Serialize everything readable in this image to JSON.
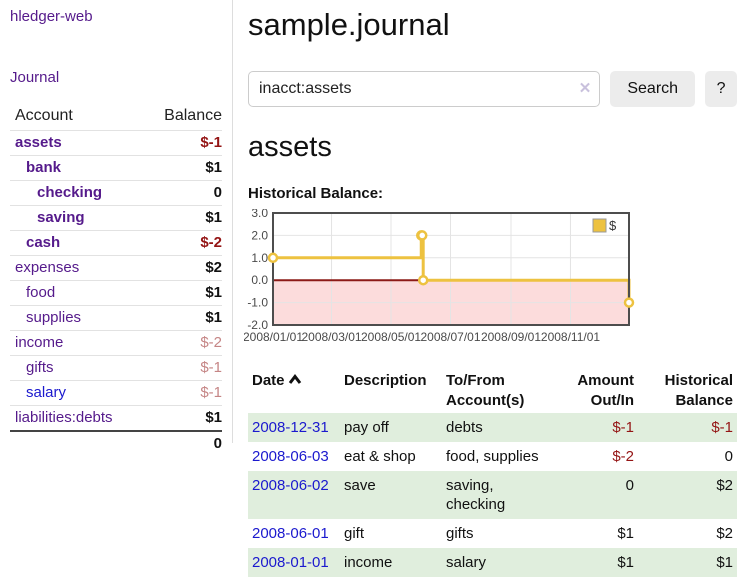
{
  "app": {
    "name": "hledger-web"
  },
  "sidebar": {
    "nav_journal": "Journal",
    "accounts_table": {
      "headers": {
        "account": "Account",
        "balance": "Balance"
      },
      "rows": [
        {
          "name": "assets",
          "balance": "$-1",
          "level": 1,
          "bold": true,
          "tone": "neg-strong"
        },
        {
          "name": "bank",
          "balance": "$1",
          "level": 2,
          "bold": true,
          "tone": "pos"
        },
        {
          "name": "checking",
          "balance": "0",
          "level": 3,
          "bold": true,
          "tone": "pos"
        },
        {
          "name": "saving",
          "balance": "$1",
          "level": 3,
          "bold": true,
          "tone": "pos"
        },
        {
          "name": "cash",
          "balance": "$-2",
          "level": 2,
          "bold": true,
          "tone": "neg-strong"
        },
        {
          "name": "expenses",
          "balance": "$2",
          "level": 1,
          "bold": false,
          "tone": "pos"
        },
        {
          "name": "food",
          "balance": "$1",
          "level": 2,
          "bold": false,
          "tone": "pos"
        },
        {
          "name": "supplies",
          "balance": "$1",
          "level": 2,
          "bold": false,
          "tone": "pos"
        },
        {
          "name": "income",
          "balance": "$-2",
          "level": 1,
          "bold": false,
          "tone": "neg-soft"
        },
        {
          "name": "gifts",
          "balance": "$-1",
          "level": 2,
          "bold": false,
          "tone": "neg-soft"
        },
        {
          "name": "salary",
          "balance": "$-1",
          "level": 2,
          "bold": false,
          "tone": "neg-soft",
          "link": "new"
        },
        {
          "name": "liabilities:debts",
          "balance": "$1",
          "level": 1,
          "bold": false,
          "tone": "pos"
        }
      ],
      "total": "0"
    }
  },
  "main": {
    "title": "sample.journal",
    "search": {
      "value": "inacct:assets",
      "clear_icon": "✕",
      "button_label": "Search",
      "help_label": "?"
    },
    "account_heading": "assets",
    "chart_label": "Historical Balance:",
    "register": {
      "headers": {
        "date": "Date",
        "description": "Description",
        "accounts": "To/From Account(s)",
        "amount": "Amount Out/In",
        "balance": "Historical Balance"
      },
      "rows": [
        {
          "date": "2008-12-31",
          "description": "pay off",
          "accounts": "debts",
          "amount": "$-1",
          "balance": "$-1"
        },
        {
          "date": "2008-06-03",
          "description": "eat & shop",
          "accounts": "food, supplies",
          "amount": "$-2",
          "balance": "0"
        },
        {
          "date": "2008-06-02",
          "description": "save",
          "accounts": "saving, checking",
          "amount": "0",
          "balance": "$2"
        },
        {
          "date": "2008-06-01",
          "description": "gift",
          "accounts": "gifts",
          "amount": "$1",
          "balance": "$2"
        },
        {
          "date": "2008-01-01",
          "description": "income",
          "accounts": "salary",
          "amount": "$1",
          "balance": "$1"
        }
      ]
    }
  },
  "chart_data": {
    "type": "line",
    "title": "Historical Balance:",
    "step": true,
    "legend": [
      "$"
    ],
    "legend_position": "top-right",
    "x": [
      "2008-01-01",
      "2008-06-01",
      "2008-06-02",
      "2008-06-03",
      "2008-12-31"
    ],
    "y": [
      1,
      2,
      2,
      0,
      -1
    ],
    "xlim": [
      "2008-01-01",
      "2008-12-31"
    ],
    "ylim": [
      -2,
      3
    ],
    "x_tick_labels": [
      "2008/01/01",
      "2008/03/01",
      "2008/05/01",
      "2008/07/01",
      "2008/09/01",
      "2008/11/01"
    ],
    "y_tick_labels": [
      "3.0",
      "2.0",
      "1.0",
      "0.0",
      "-1.0",
      "-2.0"
    ],
    "grid": true,
    "colors": {
      "series": "#edc240",
      "marker_fill": "#ffffff",
      "negative_region": "#fcdcdc",
      "zero_line": "#8c1a17",
      "plot_border": "#4d4d4d",
      "gridline": "#e4e4e4",
      "tick_text": "#4a4a4a"
    }
  }
}
